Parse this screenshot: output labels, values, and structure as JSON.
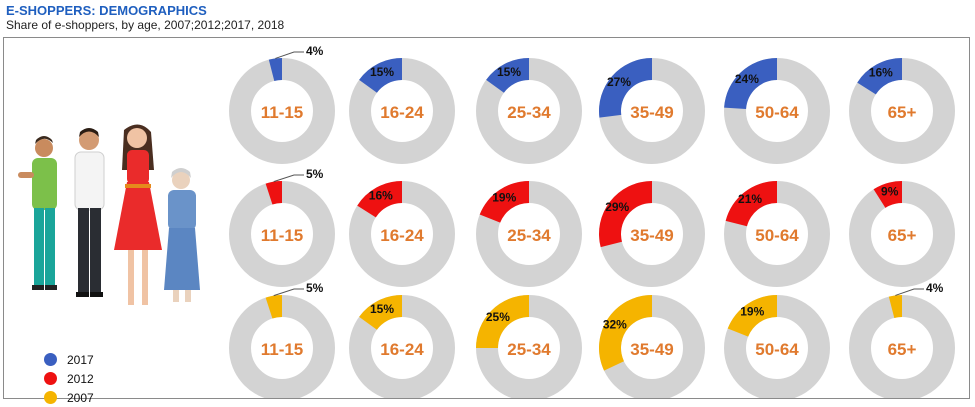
{
  "header": {
    "title": "E-SHOPPERS: DEMOGRAPHICS",
    "subtitle": "Share of e-shoppers, by age, 2007;2012;2017, 2018"
  },
  "legend": [
    {
      "label": "2017",
      "color": "#3a5fc0"
    },
    {
      "label": "2012",
      "color": "#ee1111"
    },
    {
      "label": "2007",
      "color": "#f5b400"
    }
  ],
  "ring_color": "#d3d3d3",
  "category_label_color": "#e07a2e",
  "chart_data": {
    "type": "pie",
    "categories": [
      "11-15",
      "16-24",
      "25-34",
      "35-49",
      "50-64",
      "65+"
    ],
    "series": [
      {
        "name": "2017",
        "color": "#3a5fc0",
        "values": [
          4,
          15,
          15,
          27,
          24,
          16
        ],
        "labels": [
          "4%",
          "15%",
          "15%",
          "27%",
          "24%",
          "16%"
        ]
      },
      {
        "name": "2012",
        "color": "#ee1111",
        "values": [
          5,
          16,
          19,
          29,
          21,
          9
        ],
        "labels": [
          "5%",
          "16%",
          "19%",
          "29%",
          "21%",
          "9%"
        ]
      },
      {
        "name": "2007",
        "color": "#f5b400",
        "values": [
          5,
          15,
          25,
          32,
          19,
          4
        ],
        "labels": [
          "5%",
          "15%",
          "25%",
          "32%",
          "19%",
          "4%"
        ]
      }
    ]
  }
}
